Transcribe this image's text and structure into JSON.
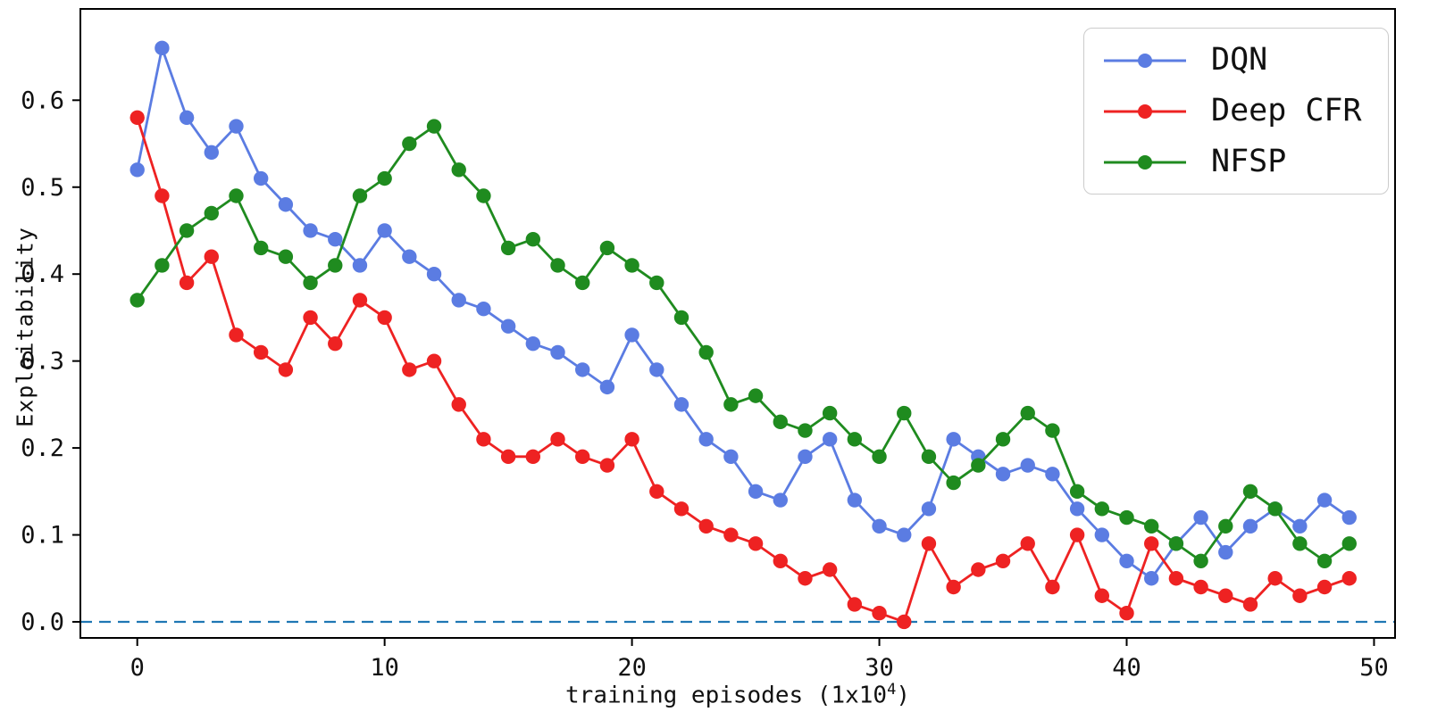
{
  "chart_data": {
    "type": "line",
    "title": "",
    "xlabel": "training episodes (1x10",
    "xlabel_sup": "4",
    "xlabel_close": ")",
    "ylabel": "Exploitability",
    "x_start": 0,
    "x_step": 1,
    "xlim": [
      -2.3,
      50.85
    ],
    "ylim": [
      -0.0185,
      0.705
    ],
    "x_ticks": [
      0,
      10,
      20,
      30,
      40,
      50
    ],
    "y_ticks": [
      0.0,
      0.1,
      0.2,
      0.3,
      0.4,
      0.5,
      0.6
    ],
    "grid": false,
    "legend_position": "upper right",
    "zero_line": {
      "y": 0.0,
      "color": "#1f77b4",
      "style": "dashed"
    },
    "frame_color": "#000000",
    "marker": "circle",
    "series": [
      {
        "name": "DQN",
        "color": "#5b7ce2",
        "values": [
          0.52,
          0.66,
          0.58,
          0.54,
          0.57,
          0.51,
          0.48,
          0.45,
          0.44,
          0.41,
          0.45,
          0.42,
          0.4,
          0.37,
          0.36,
          0.34,
          0.32,
          0.31,
          0.29,
          0.27,
          0.33,
          0.29,
          0.25,
          0.21,
          0.19,
          0.15,
          0.14,
          0.19,
          0.21,
          0.14,
          0.11,
          0.1,
          0.13,
          0.21,
          0.19,
          0.17,
          0.18,
          0.17,
          0.13,
          0.1,
          0.07,
          0.05,
          0.09,
          0.12,
          0.08,
          0.11,
          0.13,
          0.11,
          0.14,
          0.12
        ]
      },
      {
        "name": "Deep CFR",
        "color": "#ee2222",
        "values": [
          0.58,
          0.49,
          0.39,
          0.42,
          0.33,
          0.31,
          0.29,
          0.35,
          0.32,
          0.37,
          0.35,
          0.29,
          0.3,
          0.25,
          0.21,
          0.19,
          0.19,
          0.21,
          0.19,
          0.18,
          0.21,
          0.15,
          0.13,
          0.11,
          0.1,
          0.09,
          0.07,
          0.05,
          0.06,
          0.02,
          0.01,
          0.0,
          0.09,
          0.04,
          0.06,
          0.07,
          0.09,
          0.04,
          0.1,
          0.03,
          0.01,
          0.09,
          0.05,
          0.04,
          0.03,
          0.02,
          0.05,
          0.03,
          0.04,
          0.05
        ]
      },
      {
        "name": "NFSP",
        "color": "#1f8b1f",
        "values": [
          0.37,
          0.41,
          0.45,
          0.47,
          0.49,
          0.43,
          0.42,
          0.39,
          0.41,
          0.49,
          0.51,
          0.55,
          0.57,
          0.52,
          0.49,
          0.43,
          0.44,
          0.41,
          0.39,
          0.43,
          0.41,
          0.39,
          0.35,
          0.31,
          0.25,
          0.26,
          0.23,
          0.22,
          0.24,
          0.21,
          0.19,
          0.24,
          0.19,
          0.16,
          0.18,
          0.21,
          0.24,
          0.22,
          0.15,
          0.13,
          0.12,
          0.11,
          0.09,
          0.07,
          0.11,
          0.15,
          0.13,
          0.09,
          0.07,
          0.09
        ]
      }
    ]
  }
}
